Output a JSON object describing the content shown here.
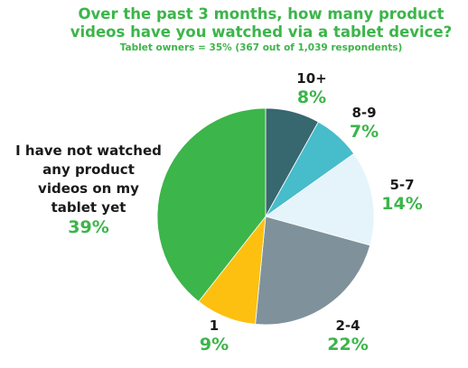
{
  "chart_data": {
    "type": "pie",
    "title_lines": [
      "Over the past 3 months, how many product",
      "videos have you watched via a tablet device?"
    ],
    "subtitle": "Tablet owners = 35%  (367 out of 1,039 respondents)",
    "slices": [
      {
        "label": "10+",
        "value": 8,
        "display": "8%",
        "color": "#37676f"
      },
      {
        "label": "8-9",
        "value": 7,
        "display": "7%",
        "color": "#47bccb"
      },
      {
        "label": "5-7",
        "value": 14,
        "display": "14%",
        "color": "#e4f4fa"
      },
      {
        "label": "2-4",
        "value": 22,
        "display": "22%",
        "color": "#7f929b"
      },
      {
        "label": "1",
        "value": 9,
        "display": "9%",
        "color": "#fdc010"
      },
      {
        "label_lines": [
          "I have not watched",
          "any product",
          "videos on my",
          "tablet yet"
        ],
        "value": 39,
        "display": "39%",
        "color": "#3cb54a"
      }
    ]
  }
}
